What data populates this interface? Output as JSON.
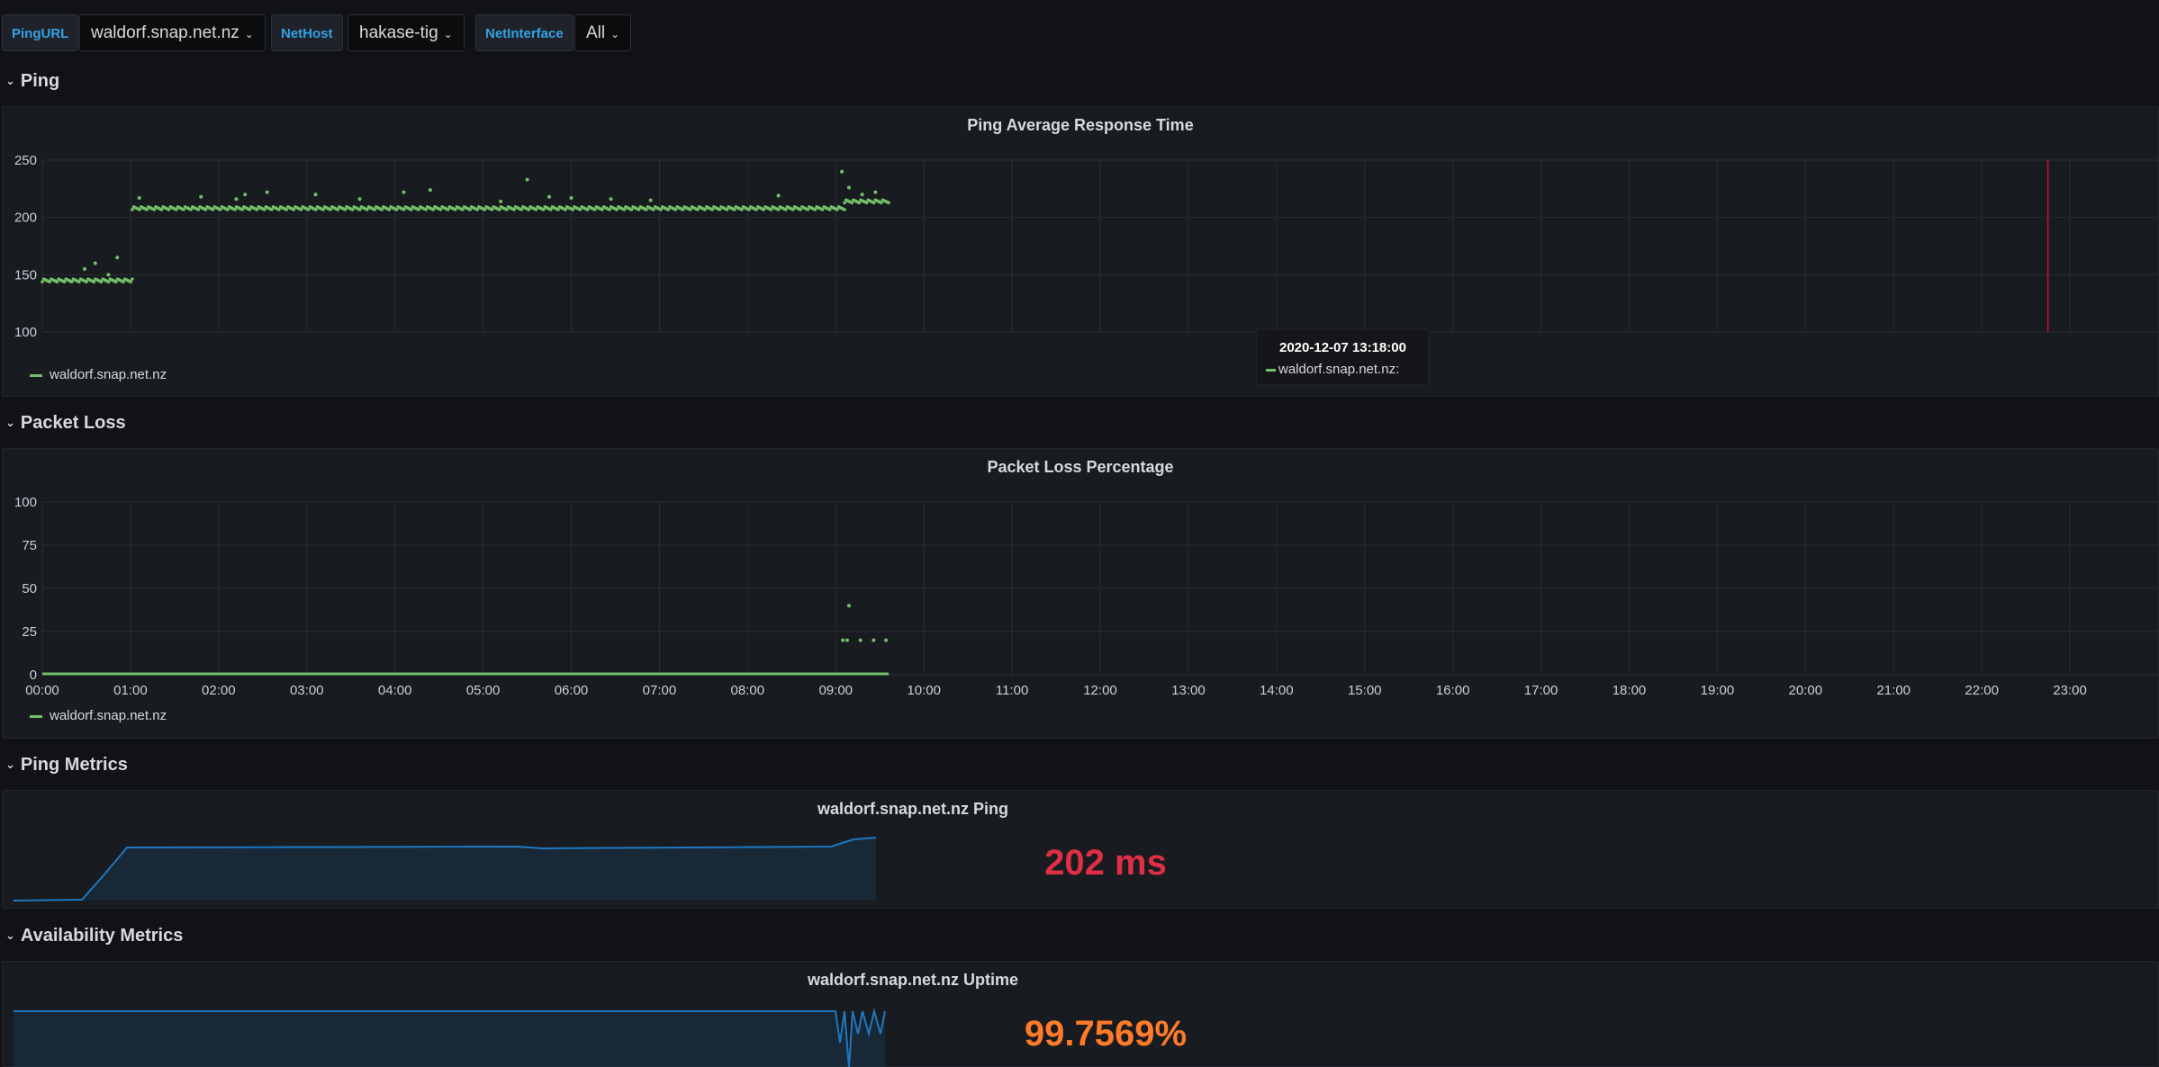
{
  "variables": [
    {
      "label": "PingURL",
      "value": "waldorf.snap.net.nz"
    },
    {
      "label": "NetHost",
      "value": "hakase-tig"
    },
    {
      "label": "NetInterface",
      "value": "All"
    }
  ],
  "rows": {
    "ping": "Ping",
    "packet_loss": "Packet Loss",
    "ping_metrics": "Ping Metrics",
    "availability": "Availability Metrics"
  },
  "x_ticks": [
    "00:00",
    "01:00",
    "02:00",
    "03:00",
    "04:00",
    "05:00",
    "06:00",
    "07:00",
    "08:00",
    "09:00",
    "10:00",
    "11:00",
    "12:00",
    "13:00",
    "14:00",
    "15:00",
    "16:00",
    "17:00",
    "18:00",
    "19:00",
    "20:00",
    "21:00",
    "22:00",
    "23:00"
  ],
  "ping_panel": {
    "title": "Ping Average Response Time",
    "legend": "waldorf.snap.net.nz",
    "tooltip": {
      "time": "2020-12-07 13:18:00",
      "series": "waldorf.snap.net.nz:"
    }
  },
  "loss_panel": {
    "title": "Packet Loss Percentage",
    "legend": "waldorf.snap.net.nz"
  },
  "ping_stat": {
    "title": "waldorf.snap.net.nz Ping",
    "value": "202 ms",
    "color": "#e02f44"
  },
  "uptime_stat": {
    "title": "waldorf.snap.net.nz Uptime",
    "value": "99.7569%",
    "color": "#ff7a29"
  },
  "colors": {
    "series": "#73bf69",
    "spark": "#1f78c1",
    "now_line": "#c4162a"
  },
  "chart_data": [
    {
      "type": "scatter",
      "title": "Ping Average Response Time",
      "xlabel": "",
      "ylabel": "",
      "ylim": [
        100,
        250
      ],
      "yticks": [
        100,
        150,
        200,
        250
      ],
      "xlim": [
        0,
        24
      ],
      "series": [
        {
          "name": "waldorf.snap.net.nz",
          "segments": [
            {
              "x_start": 0.0,
              "x_end": 1.02,
              "y": 145
            },
            {
              "x_start": 1.02,
              "x_end": 9.1,
              "y": 208
            },
            {
              "x_start": 9.1,
              "x_end": 9.6,
              "y": 214
            }
          ],
          "outliers": [
            {
              "x": 0.48,
              "y": 155
            },
            {
              "x": 0.6,
              "y": 160
            },
            {
              "x": 0.85,
              "y": 165
            },
            {
              "x": 0.75,
              "y": 150
            },
            {
              "x": 1.1,
              "y": 217
            },
            {
              "x": 1.8,
              "y": 218
            },
            {
              "x": 2.2,
              "y": 216
            },
            {
              "x": 2.3,
              "y": 220
            },
            {
              "x": 2.55,
              "y": 222
            },
            {
              "x": 3.1,
              "y": 220
            },
            {
              "x": 3.6,
              "y": 216
            },
            {
              "x": 4.1,
              "y": 222
            },
            {
              "x": 4.4,
              "y": 224
            },
            {
              "x": 5.2,
              "y": 214
            },
            {
              "x": 5.5,
              "y": 233
            },
            {
              "x": 5.75,
              "y": 218
            },
            {
              "x": 6.0,
              "y": 217
            },
            {
              "x": 6.45,
              "y": 216
            },
            {
              "x": 6.9,
              "y": 215
            },
            {
              "x": 8.35,
              "y": 219
            },
            {
              "x": 9.07,
              "y": 240
            },
            {
              "x": 9.15,
              "y": 226
            },
            {
              "x": 9.3,
              "y": 220
            },
            {
              "x": 9.45,
              "y": 222
            }
          ]
        }
      ]
    },
    {
      "type": "scatter",
      "title": "Packet Loss Percentage",
      "xlabel": "",
      "ylabel": "",
      "ylim": [
        0,
        100
      ],
      "yticks": [
        0,
        25,
        50,
        75,
        100
      ],
      "xlim": [
        0,
        24
      ],
      "series": [
        {
          "name": "waldorf.snap.net.nz",
          "baseline": {
            "x_start": 0.0,
            "x_end": 9.6,
            "y": 0
          },
          "points": [
            {
              "x": 9.08,
              "y": 20
            },
            {
              "x": 9.13,
              "y": 20
            },
            {
              "x": 9.15,
              "y": 40
            },
            {
              "x": 9.28,
              "y": 20
            },
            {
              "x": 9.43,
              "y": 20
            },
            {
              "x": 9.57,
              "y": 20
            }
          ]
        }
      ]
    }
  ]
}
